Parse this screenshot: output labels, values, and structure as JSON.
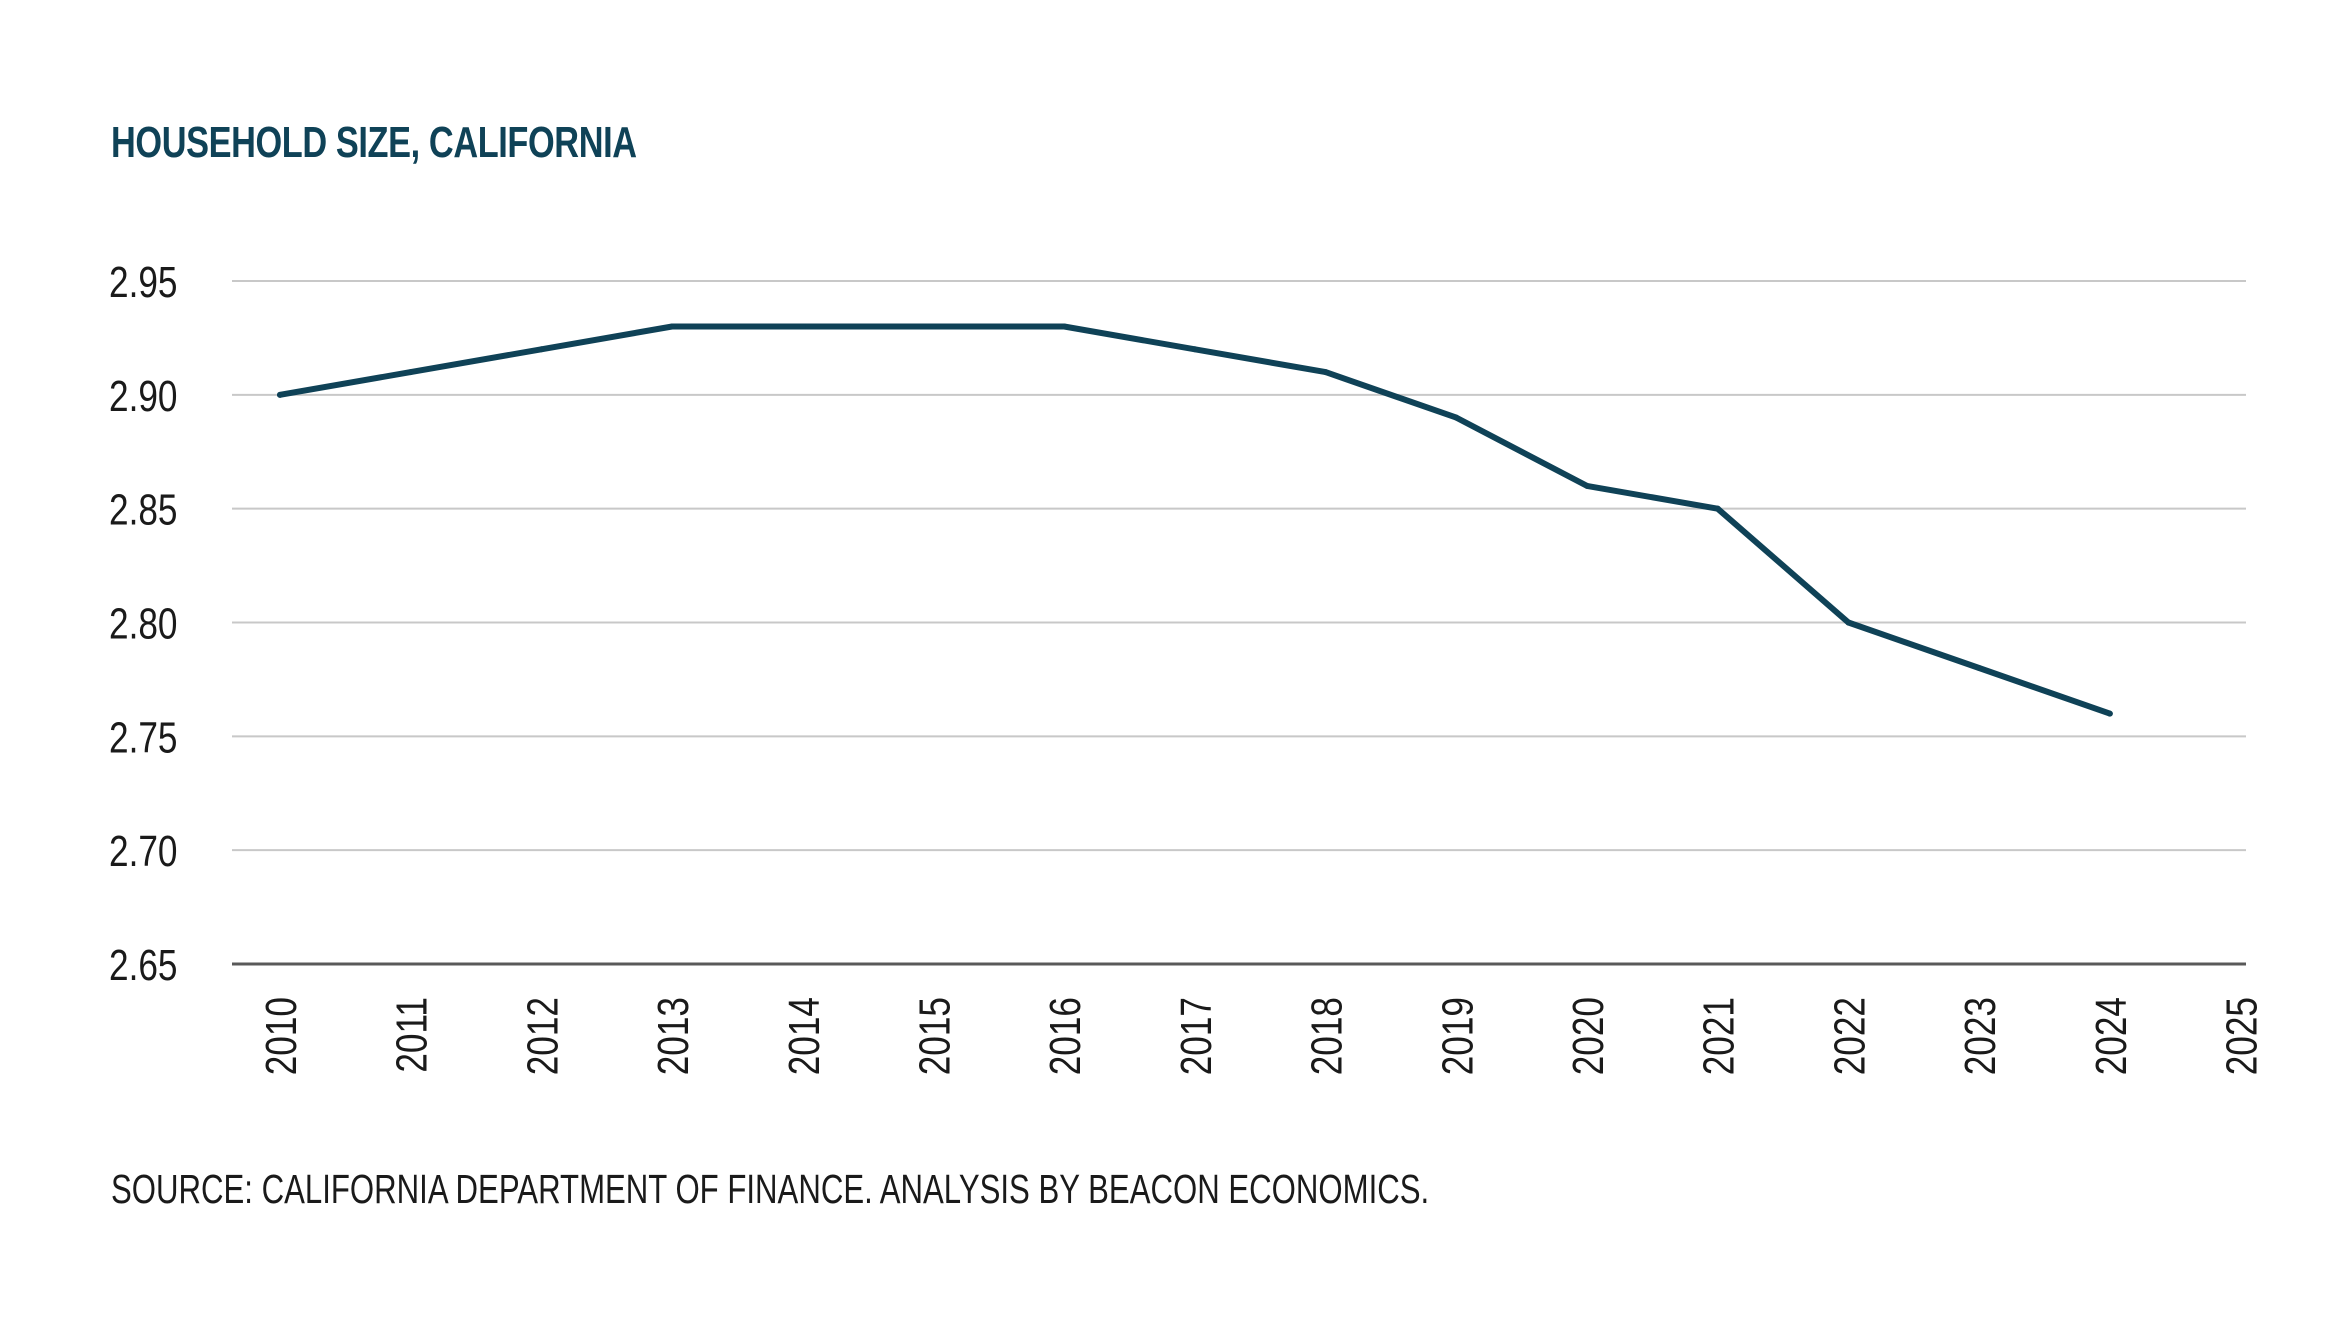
{
  "chart_title": "HOUSEHOLD SIZE, CALIFORNIA",
  "source_note": "SOURCE: CALIFORNIA DEPARTMENT OF FINANCE. ANALYSIS BY BEACON ECONOMICS.",
  "colors": {
    "title": "#0f4257",
    "line": "#0f4257",
    "gridline": "#c8c8c8",
    "axis": "#595959",
    "text": "#1a1a1a"
  },
  "chart_data": {
    "type": "line",
    "title": "HOUSEHOLD SIZE, CALIFORNIA",
    "xlabel": "",
    "ylabel": "",
    "x_tick_labels": [
      "2010",
      "2011",
      "2012",
      "2013",
      "2014",
      "2015",
      "2016",
      "2017",
      "2018",
      "2019",
      "2020",
      "2021",
      "2022",
      "2023",
      "2024",
      "2025"
    ],
    "y_tick_labels": [
      "2.95",
      "2.90",
      "2.85",
      "2.80",
      "2.75",
      "2.70",
      "2.65"
    ],
    "ylim": [
      2.65,
      2.95
    ],
    "y_ticks": [
      2.65,
      2.7,
      2.75,
      2.8,
      2.85,
      2.9,
      2.95
    ],
    "grid": "horizontal",
    "legend": "none",
    "series": [
      {
        "x": [
          2010,
          2011,
          2012,
          2013,
          2014,
          2015,
          2016,
          2017,
          2018,
          2019,
          2020,
          2021,
          2022,
          2023,
          2024
        ],
        "values": [
          2.9,
          2.91,
          2.92,
          2.93,
          2.93,
          2.93,
          2.93,
          2.92,
          2.91,
          2.89,
          2.86,
          2.85,
          2.8,
          2.78,
          2.76
        ]
      }
    ]
  }
}
